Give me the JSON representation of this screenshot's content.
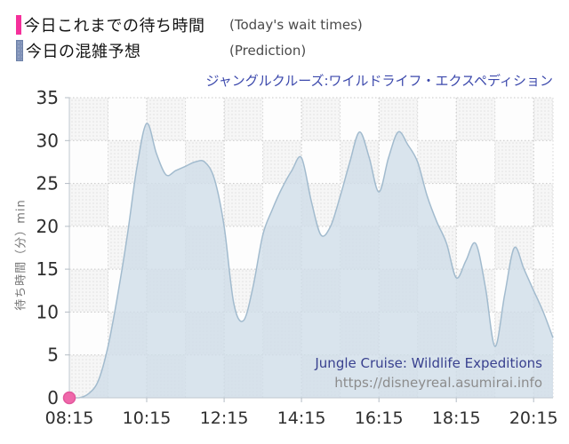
{
  "legend": {
    "today": {
      "label_ja": "今日これまでの待ち時間",
      "label_en": "(Today's wait times)",
      "color": "#f5309b"
    },
    "prediction": {
      "label_ja": "今日の混雑予想",
      "label_en": "(Prediction)",
      "color": "#8092b8"
    }
  },
  "title": "ジャングルクルーズ:ワイルドライフ・エクスペディション",
  "attribution": {
    "name": "Jungle Cruise: Wildlife Expeditions",
    "url": "https://disneyreal.asumirai.info"
  },
  "chart_data": {
    "type": "area",
    "title": "ジャングルクルーズ:ワイルドライフ・エクスペディション",
    "ylabel": "待ち時間（分）min",
    "ylim": [
      0,
      35
    ],
    "y_ticks": [
      0,
      5,
      10,
      15,
      20,
      25,
      30,
      35
    ],
    "x_tick_labels": [
      "08:15",
      "10:15",
      "12:15",
      "14:15",
      "16:15",
      "18:15",
      "20:15"
    ],
    "x_start": "08:15",
    "x_end": "20:45",
    "grid": "dotted checkerboard",
    "legend_position": "top-left outside",
    "series": [
      {
        "name": "今日これまでの待ち時間 (Today's wait times)",
        "type": "point",
        "color": "#ef68aa",
        "stroke": "#e2579c",
        "points": [
          {
            "time": "08:15",
            "value": 0
          }
        ]
      },
      {
        "name": "今日の混雑予想 (Prediction)",
        "type": "area",
        "stroke": "#a2bbce",
        "fill": "#cfdde8",
        "times": [
          "08:15",
          "08:30",
          "08:45",
          "09:00",
          "09:15",
          "09:30",
          "09:45",
          "10:00",
          "10:15",
          "10:30",
          "10:45",
          "11:00",
          "11:15",
          "11:30",
          "11:45",
          "12:00",
          "12:15",
          "12:30",
          "12:45",
          "13:00",
          "13:15",
          "13:30",
          "13:45",
          "14:00",
          "14:15",
          "14:30",
          "14:45",
          "15:00",
          "15:15",
          "15:30",
          "15:45",
          "16:00",
          "16:15",
          "16:30",
          "16:45",
          "17:00",
          "17:15",
          "17:30",
          "17:45",
          "18:00",
          "18:15",
          "18:30",
          "18:45",
          "19:00",
          "19:15",
          "19:30",
          "19:45",
          "20:00",
          "20:15",
          "20:30",
          "20:45"
        ],
        "values": [
          0,
          0,
          0.5,
          2,
          6,
          12,
          19,
          27,
          32,
          28.5,
          26,
          26.5,
          27,
          27.5,
          27.5,
          25.5,
          20,
          11,
          9,
          13,
          19,
          22,
          24.5,
          26.5,
          28,
          23,
          19,
          20,
          23.5,
          27.5,
          31,
          28,
          24,
          28,
          31,
          29.5,
          27.5,
          23.5,
          20.5,
          18,
          14,
          16,
          18,
          13,
          6,
          12,
          17.5,
          15,
          12.5,
          10,
          7
        ]
      }
    ]
  },
  "colors": {
    "grid_h": "#c8c8c8",
    "grid_v": "#d4d4d4",
    "grid_v_major": "#c2c2c2",
    "axis": "#c0c8d0",
    "tick_text": "#2e2e2e",
    "checker_bg": "#f6f6f6",
    "checker_dot": "#e2e2e2",
    "plot_bg": "#fdfdfd"
  }
}
